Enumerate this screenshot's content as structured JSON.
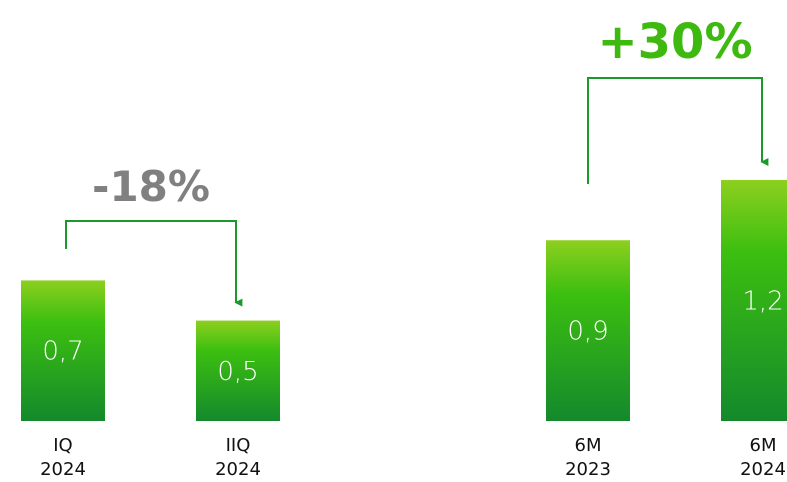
{
  "chart_data": {
    "type": "bar",
    "title": "",
    "xlabel": "",
    "ylabel": "",
    "ylim": [
      0,
      1.2
    ],
    "categories": [
      [
        "IQ",
        "2024"
      ],
      [
        "IIQ",
        "2024"
      ],
      [
        "6M",
        "2023"
      ],
      [
        "6M",
        "2024"
      ]
    ],
    "values": [
      0.7,
      0.5,
      0.9,
      1.2
    ],
    "value_labels": [
      "0,7",
      "0,5",
      "0,9",
      "1,2"
    ],
    "annotations": [
      {
        "text": "-18%",
        "from": 0,
        "to": 1,
        "color": "#808080"
      },
      {
        "text": "+30%",
        "from": 2,
        "to": 3,
        "color": "#3db90f"
      }
    ],
    "colors": {
      "bar_top": "#8dcf1f",
      "bar_mid": "#3cbf10",
      "bar_bottom": "#14892c",
      "connector": "#1a9a2c"
    },
    "grid": false
  }
}
